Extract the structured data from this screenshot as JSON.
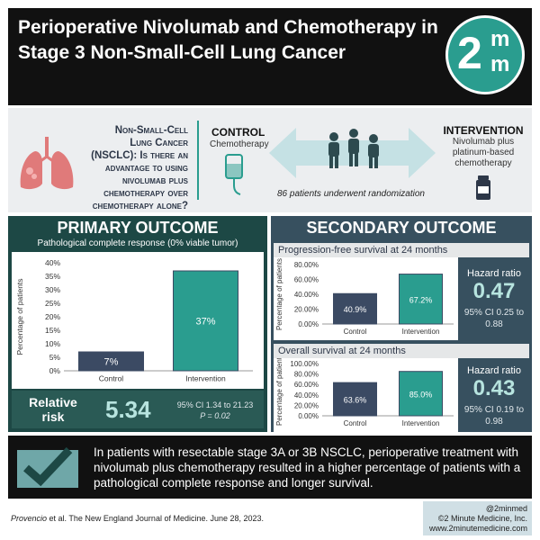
{
  "header": {
    "title": "Perioperative Nivolumab and Chemotherapy in Stage 3 Non-Small-Cell Lung Cancer",
    "logo_main": "2",
    "logo_m1": "m",
    "logo_m2": "m",
    "logo_color": "#2a9d8f"
  },
  "design": {
    "question_line1": "Non-Small-Cell",
    "question_line2": "Lung Cancer",
    "question_line3": "(NSCLC): Is there an",
    "question_line4": "advantage to using",
    "question_line5": "nivolumab plus",
    "question_line6": "chemotherapy over",
    "question_line7": "chemotherapy alone?",
    "control_title": "CONTROL",
    "control_sub": "Chemotherapy",
    "intervention_title": "INTERVENTION",
    "intervention_sub1": "Nivolumab plus",
    "intervention_sub2": "platinum-based",
    "intervention_sub3": "chemotherapy",
    "randomization": "86 patients underwent randomization",
    "lung_icon": "lungs-icon",
    "iv_icon": "iv-bag-icon",
    "people_icon": "people-icon",
    "vial_icon": "vial-icon"
  },
  "primary": {
    "title": "PRIMARY OUTCOME",
    "subtitle": "Pathological complete response (0% viable tumor)",
    "relative_risk_label1": "Relative",
    "relative_risk_label2": "risk",
    "relative_risk_value": "5.34",
    "ci": "95% CI 1.34 to 21.23",
    "p": "P = 0.02"
  },
  "secondary": {
    "title": "SECONDARY OUTCOME",
    "pfs_head": "Progression-free survival at 24 months",
    "pfs_hr_label": "Hazard ratio",
    "pfs_hr_value": "0.47",
    "pfs_ci1": "95% CI 0.25 to",
    "pfs_ci2": "0.88",
    "os_head": "Overall survival at 24 months",
    "os_hr_label": "Hazard ratio",
    "os_hr_value": "0.43",
    "os_ci1": "95% CI 0.19 to",
    "os_ci2": "0.98"
  },
  "chart_data": [
    {
      "type": "bar",
      "title": "Pathological complete response (0% viable tumor)",
      "categories": [
        "Control",
        "Intervention"
      ],
      "values": [
        7,
        37
      ],
      "value_labels": [
        "7%",
        "37%"
      ],
      "ylabel": "Percentage of patients",
      "ylim": [
        0,
        40
      ],
      "yticks": [
        "0%",
        "5%",
        "10%",
        "15%",
        "20%",
        "25%",
        "30%",
        "35%",
        "40%"
      ],
      "colors": [
        "#3b4a63",
        "#2a9d8f"
      ]
    },
    {
      "type": "bar",
      "title": "Progression-free survival at 24 months",
      "categories": [
        "Control",
        "Intervention"
      ],
      "values": [
        40.9,
        67.2
      ],
      "value_labels": [
        "40.9%",
        "67.2%"
      ],
      "ylabel": "Percentage of patients",
      "ylim": [
        0,
        80
      ],
      "yticks": [
        "0.00%",
        "20.00%",
        "40.00%",
        "60.00%",
        "80.00%"
      ],
      "colors": [
        "#3b4a63",
        "#2a9d8f"
      ]
    },
    {
      "type": "bar",
      "title": "Overall survival at 24 months",
      "categories": [
        "Control",
        "Intervention"
      ],
      "values": [
        63.6,
        85.0
      ],
      "value_labels": [
        "63.6%",
        "85.0%"
      ],
      "ylabel": "Percentage of patients",
      "ylim": [
        0,
        100
      ],
      "yticks": [
        "0.00%",
        "20.00%",
        "40.00%",
        "60.00%",
        "80.00%",
        "100.00%"
      ],
      "colors": [
        "#3b4a63",
        "#2a9d8f"
      ]
    }
  ],
  "conclusion": {
    "text": "In patients with resectable stage 3A or 3B NSCLC, perioperative treatment with nivolumab plus chemotherapy resulted in a higher percentage of patients with a pathological complete response and longer survival.",
    "check_icon": "checkmark-icon"
  },
  "footer": {
    "cite_author": "Provencio",
    "cite_rest": " et al. The New England Journal of Medicine. June 28, 2023.",
    "handle": "@2minmed",
    "copyright": "©2 Minute Medicine, Inc.",
    "website": "www.2minutemedicine.com"
  }
}
